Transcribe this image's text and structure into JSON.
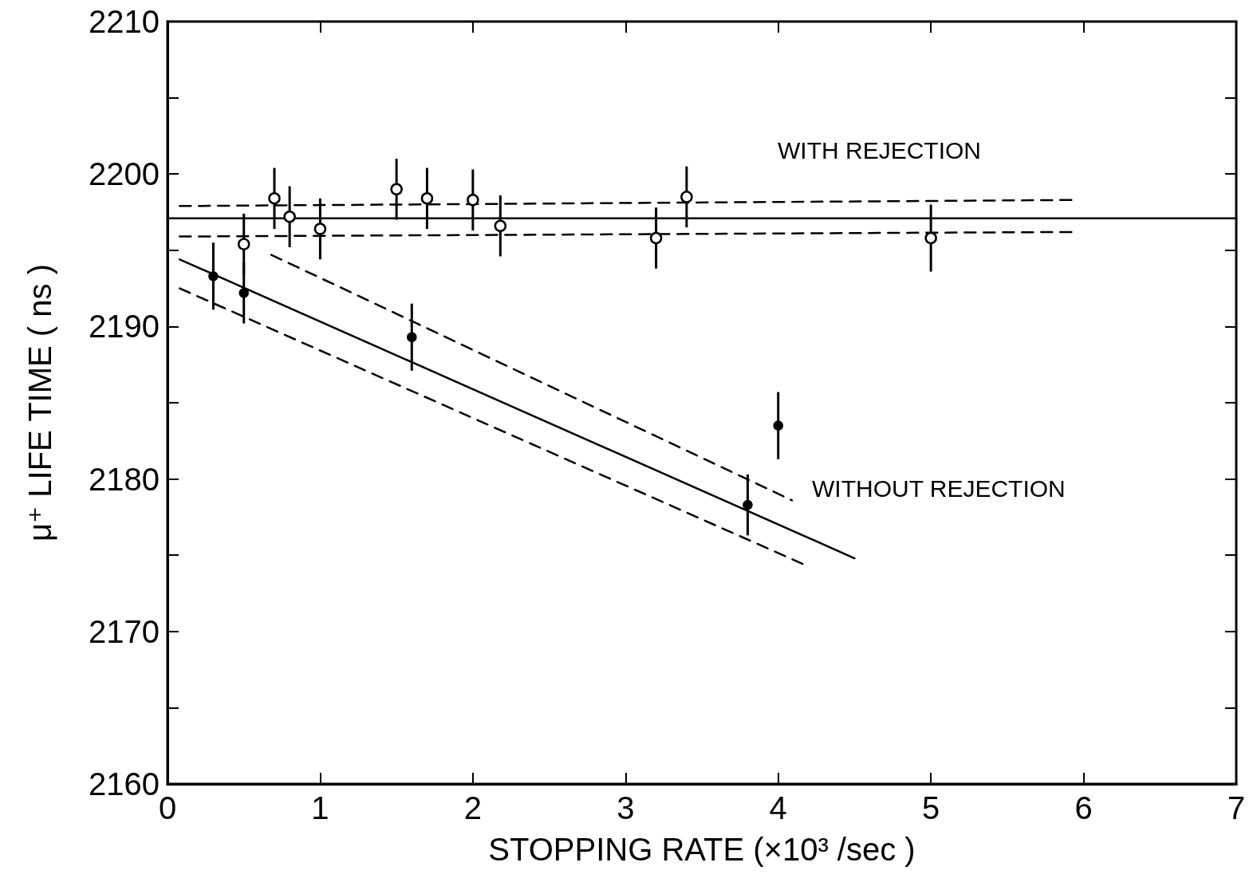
{
  "chart_data": {
    "type": "scatter",
    "xlabel": "STOPPING RATE (×10³ /sec )",
    "ylabel": "μ⁺ LIFE TIME ( ns )",
    "xlim": [
      0,
      7
    ],
    "xticks": [
      0,
      1,
      2,
      3,
      4,
      5,
      6,
      7
    ],
    "ylim": [
      2160,
      2210
    ],
    "yticks": [
      2160,
      {
        "value": 2165,
        "label": null
      },
      2170,
      {
        "value": 2175,
        "label": null
      },
      2180,
      {
        "value": 2185,
        "label": null
      },
      2190,
      {
        "value": 2195,
        "label": null
      },
      2200,
      {
        "value": 2205,
        "label": null
      },
      2210
    ],
    "grid": false,
    "marker": "circle",
    "series": [
      {
        "color": "#ffffff",
        "x": [
          0.5,
          0.7,
          0.8,
          1.0,
          1.5,
          1.7,
          2.0,
          2.18,
          3.2,
          3.4,
          5.0
        ],
        "values": [
          2195.4,
          2198.4,
          2197.2,
          2196.4,
          2199.0,
          2198.4,
          2198.3,
          2196.6,
          2195.8,
          2198.5,
          2195.8
        ],
        "errors": [
          2,
          2,
          2,
          2,
          2,
          2,
          2,
          2,
          2,
          2,
          2.2
        ]
      },
      {
        "color": "#000000",
        "x": [
          0.3,
          0.5,
          1.6,
          3.8,
          4.0
        ],
        "values": [
          2193.3,
          2192.2,
          2189.3,
          2178.3,
          2183.5
        ],
        "errors": [
          2.2,
          2,
          2.2,
          2,
          2.2
        ]
      },
      {
        "type": "line",
        "color": "#000000",
        "marker": "none",
        "line_style": "solid",
        "x": [
          0,
          7
        ],
        "values": [
          2197.1,
          2197.1
        ]
      },
      {
        "type": "line",
        "color": "#000000",
        "marker": "none",
        "line_style": "dashed",
        "x": [
          0.08,
          5.95
        ],
        "values": [
          2197.9,
          2198.3
        ]
      },
      {
        "type": "line",
        "color": "#000000",
        "marker": "none",
        "line_style": "dashed",
        "x": [
          0.08,
          5.95
        ],
        "values": [
          2195.9,
          2196.2
        ]
      },
      {
        "type": "line",
        "color": "#000000",
        "marker": "none",
        "line_style": "solid",
        "x": [
          0.08,
          4.5
        ],
        "values": [
          2194.4,
          2174.8
        ]
      },
      {
        "type": "line",
        "color": "#000000",
        "marker": "none",
        "line_style": "dashed",
        "x": [
          0.68,
          4.09
        ],
        "values": [
          2194.7,
          2178.6
        ]
      },
      {
        "type": "line",
        "color": "#000000",
        "marker": "none",
        "line_style": "dashed",
        "x": [
          0.08,
          4.19
        ],
        "values": [
          2192.5,
          2174.3
        ]
      }
    ],
    "annotations": [
      "WITH REJECTION",
      "WITHOUT REJECTION"
    ]
  }
}
